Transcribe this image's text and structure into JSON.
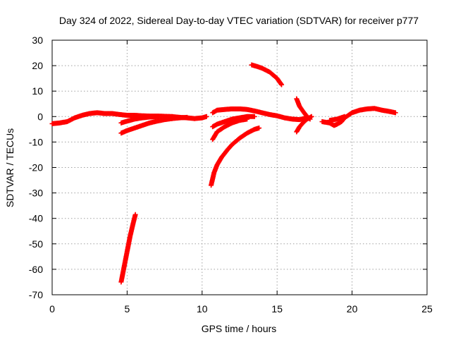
{
  "chart_data": {
    "type": "scatter",
    "title": "Day 324 of 2022, Sidereal Day-to-day VTEC variation (SDTVAR) for receiver p777",
    "xlabel": "GPS time / hours",
    "ylabel": "SDTVAR / TECUs",
    "xlim": [
      0,
      25
    ],
    "ylim": [
      -70,
      30
    ],
    "xticks": [
      0,
      5,
      10,
      15,
      20,
      25
    ],
    "yticks": [
      -70,
      -60,
      -50,
      -40,
      -30,
      -20,
      -10,
      0,
      10,
      20,
      30
    ],
    "grid": true,
    "legend": "none",
    "marker": "plus",
    "color": "#ff0000",
    "series": [
      {
        "x": [
          0.0,
          0.5,
          1.0,
          1.5,
          2.0,
          2.5,
          3.0,
          3.5,
          4.0,
          4.5,
          5.0,
          5.5,
          6.0,
          6.5,
          7.0,
          7.5,
          8.0,
          8.5,
          9.0,
          9.5,
          10.0,
          10.3
        ],
        "y": [
          -2.8,
          -2.5,
          -2.0,
          -0.5,
          0.5,
          1.2,
          1.5,
          1.2,
          1.2,
          0.8,
          0.5,
          0.5,
          0.3,
          0.2,
          0.2,
          0.1,
          0.0,
          -0.3,
          -0.5,
          -0.8,
          -0.5,
          0.0
        ]
      },
      {
        "x": [
          4.6,
          5.0,
          5.5,
          6.0,
          6.5,
          7.0,
          7.5,
          8.0,
          8.5,
          9.0
        ],
        "y": [
          -6.5,
          -5.5,
          -4.5,
          -3.5,
          -2.5,
          -1.8,
          -1.2,
          -0.8,
          -0.5,
          -0.3
        ]
      },
      {
        "x": [
          4.6,
          5.0,
          5.5,
          6.0,
          6.5,
          7.0
        ],
        "y": [
          -2.5,
          -1.8,
          -1.0,
          -0.5,
          -0.2,
          0.0
        ]
      },
      {
        "x": [
          4.6,
          4.8,
          5.0,
          5.2,
          5.4,
          5.55
        ],
        "y": [
          -65,
          -59,
          -53,
          -47,
          -42,
          -38.5
        ]
      },
      {
        "x": [
          10.7,
          11.0,
          11.5,
          12.0,
          12.5,
          13.0,
          13.5,
          14.0,
          14.5,
          15.0,
          15.5,
          16.0,
          16.5,
          17.0
        ],
        "y": [
          1.5,
          2.5,
          2.8,
          3.0,
          3.0,
          2.8,
          2.2,
          1.5,
          0.8,
          0.3,
          -0.5,
          -1.0,
          -1.2,
          -0.5
        ]
      },
      {
        "x": [
          10.7,
          11.0,
          11.5,
          12.0,
          12.5,
          13.0
        ],
        "y": [
          -9.0,
          -6.0,
          -4.0,
          -2.5,
          -1.5,
          -1.0
        ]
      },
      {
        "x": [
          10.7,
          11.0,
          11.5,
          12.0,
          12.5,
          13.0,
          13.5
        ],
        "y": [
          -4.0,
          -3.0,
          -2.0,
          -1.0,
          -0.5,
          0.0,
          0.0
        ]
      },
      {
        "x": [
          10.6,
          10.8,
          11.0,
          11.3,
          11.7,
          12.0,
          12.5,
          13.0,
          13.5,
          13.8
        ],
        "y": [
          -27,
          -22,
          -19,
          -16,
          -13,
          -11,
          -8.5,
          -6.5,
          -5.0,
          -4.5
        ]
      },
      {
        "x": [
          13.3,
          13.6,
          14.0,
          14.5,
          15.0,
          15.3
        ],
        "y": [
          20.3,
          19.8,
          19.0,
          17.5,
          15.0,
          12.5
        ]
      },
      {
        "x": [
          16.3,
          16.5,
          16.8,
          17.0,
          17.2
        ],
        "y": [
          7.0,
          4.0,
          1.5,
          0.0,
          -1.0
        ]
      },
      {
        "x": [
          16.3,
          16.5,
          16.8,
          17.0,
          17.3
        ],
        "y": [
          -6.0,
          -4.0,
          -2.0,
          -1.0,
          0.0
        ]
      },
      {
        "x": [
          18.0,
          18.5,
          18.8,
          19.0,
          19.3,
          19.5,
          20.0,
          20.5,
          21.0,
          21.5,
          22.0,
          22.5,
          22.9
        ],
        "y": [
          -2.0,
          -2.5,
          -3.5,
          -3.0,
          -2.0,
          -0.5,
          1.5,
          2.5,
          3.0,
          3.2,
          2.5,
          2.0,
          1.5
        ]
      },
      {
        "x": [
          18.5,
          19.0,
          19.5
        ],
        "y": [
          -1.5,
          -1.0,
          0.0
        ]
      }
    ]
  }
}
